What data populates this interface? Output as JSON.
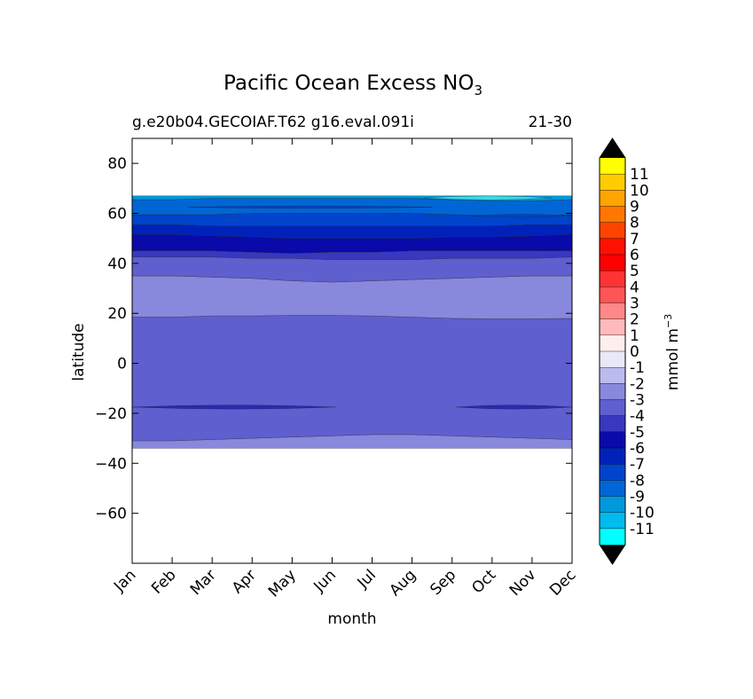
{
  "chart_data": {
    "type": "heatmap",
    "title_main": "Pacific Ocean Excess NO",
    "title_sub": "3",
    "subtitle_left": "g.e20b04.GECOIAF.T62 g16.eval.091i",
    "subtitle_right": "21-30",
    "xlabel": "month",
    "ylabel": "latitude",
    "x_categories": [
      "Jan",
      "Feb",
      "Mar",
      "Apr",
      "May",
      "Jun",
      "Jul",
      "Aug",
      "Sep",
      "Oct",
      "Nov",
      "Dec"
    ],
    "ylim": [
      -80,
      90
    ],
    "y_ticks": [
      {
        "value": 80,
        "label": "80"
      },
      {
        "value": 60,
        "label": "60"
      },
      {
        "value": 40,
        "label": "40"
      },
      {
        "value": 20,
        "label": "20"
      },
      {
        "value": 0,
        "label": "0"
      },
      {
        "value": -20,
        "label": "−20"
      },
      {
        "value": -40,
        "label": "−40"
      },
      {
        "value": -60,
        "label": "−60"
      }
    ],
    "contour_bands": [
      {
        "level": -3,
        "color": "#8888DD",
        "south": [
          -34,
          -34,
          -34,
          -34,
          -34,
          -34,
          -34,
          -34,
          -34,
          -34,
          -34,
          -34
        ],
        "north": [
          -31,
          -31,
          -30.5,
          -30,
          -29.5,
          -29,
          -28.5,
          -28.5,
          -29,
          -29.5,
          -30,
          -30.5
        ]
      },
      {
        "level": -4,
        "color": "#5F5FCF",
        "south": [
          -31,
          -31,
          -30.5,
          -30,
          -29.5,
          -29,
          -28.5,
          -28.5,
          -29,
          -29.5,
          -30,
          -30.5
        ],
        "north": [
          18.5,
          18.5,
          19,
          19,
          19.2,
          19.2,
          19,
          18.5,
          18,
          17.8,
          17.8,
          18
        ]
      },
      {
        "level": -3,
        "color": "#8888DD",
        "south": [
          18.5,
          18.5,
          19,
          19,
          19.2,
          19.2,
          19,
          18.5,
          18,
          17.8,
          17.8,
          18
        ],
        "north": [
          35,
          35,
          34.5,
          34,
          33,
          32.5,
          33,
          33.5,
          34,
          34.5,
          35,
          35
        ]
      },
      {
        "level": -4,
        "color": "#5F5FCF",
        "south": [
          35,
          35,
          34.5,
          34,
          33,
          32.5,
          33,
          33.5,
          34,
          34.5,
          35,
          35
        ],
        "north": [
          42.5,
          42.5,
          42.5,
          42,
          42,
          41.5,
          41.5,
          41.5,
          42,
          42,
          42,
          42.5
        ]
      },
      {
        "level": -5,
        "color": "#3838C0",
        "south": [
          42.5,
          42.5,
          42.5,
          42,
          42,
          41.5,
          41.5,
          41.5,
          42,
          42,
          42,
          42.5
        ],
        "north": [
          45,
          45,
          45,
          44.5,
          44,
          44.5,
          44.5,
          45,
          45,
          45,
          45,
          45
        ]
      },
      {
        "level": -6,
        "color": "#0A0AAA",
        "south": [
          45,
          45,
          45,
          44.5,
          44,
          44.5,
          44.5,
          45,
          45,
          45,
          45,
          45
        ],
        "north": [
          51.5,
          51.5,
          51,
          50.5,
          50,
          50,
          50,
          50,
          50.5,
          50.5,
          51,
          51.5
        ]
      },
      {
        "level": -7,
        "color": "#0022BB",
        "south": [
          51.5,
          51.5,
          51,
          50.5,
          50,
          50,
          50,
          50,
          50.5,
          50.5,
          51,
          51.5
        ],
        "north": [
          55.5,
          55.5,
          55,
          55,
          55,
          55,
          55,
          55,
          55,
          55,
          55.5,
          55.5
        ]
      },
      {
        "level": -8,
        "color": "#0044CC",
        "south": [
          55.5,
          55.5,
          55,
          55,
          55,
          55,
          55,
          55,
          55,
          55,
          55.5,
          55.5
        ],
        "north": [
          59.5,
          59.5,
          59.5,
          60,
          60,
          60,
          60,
          60,
          59.5,
          59,
          59,
          59.5
        ]
      },
      {
        "level": -9,
        "color": "#0066D5",
        "south": [
          59.5,
          59.5,
          59.5,
          60,
          60,
          60,
          60,
          60,
          59.5,
          59,
          59,
          59.5
        ],
        "north": [
          65.5,
          65.5,
          66,
          66,
          66,
          66,
          66,
          66,
          65.5,
          65,
          65,
          65.5
        ]
      },
      {
        "level": -10,
        "color": "#0099DD",
        "south": [
          65.5,
          65.5,
          66,
          66,
          66,
          66,
          66,
          66,
          65.5,
          65,
          65,
          65.5
        ],
        "north": [
          67,
          67,
          67,
          67,
          67,
          67,
          67,
          67,
          67,
          67,
          67,
          67
        ]
      }
    ],
    "contour_lenses": [
      {
        "level": -5,
        "color": "#2A2AB5",
        "x_start": 0,
        "x_end": 5.1,
        "center": -17.5,
        "half_width": 0.8
      },
      {
        "level": -5,
        "color": "#2A2AB5",
        "x_start": 8.1,
        "x_end": 11,
        "center": -17.5,
        "half_width": 0.8
      },
      {
        "level": -8,
        "color": "#0044CC",
        "x_start": 1.4,
        "x_end": 7.5,
        "center": 62.5,
        "half_width": 0.5
      },
      {
        "level": -8,
        "color": "#0044CC",
        "x_start": 8.5,
        "x_end": 11,
        "center": 59,
        "half_width": 0.6
      },
      {
        "level": -11,
        "color": "#33DDEE",
        "x_start": 7.3,
        "x_end": 10.5,
        "center": 66.2,
        "half_width": 0.8
      }
    ],
    "colorbar": {
      "label": "mmol m",
      "label_exponent": "−3",
      "levels": [
        {
          "label": "11",
          "color": "#FFFF00"
        },
        {
          "label": "10",
          "color": "#FFCC00"
        },
        {
          "label": "9",
          "color": "#FFA500"
        },
        {
          "label": "8",
          "color": "#FF7700"
        },
        {
          "label": "7",
          "color": "#FF4400"
        },
        {
          "label": "6",
          "color": "#FF1100"
        },
        {
          "label": "5",
          "color": "#FF0000"
        },
        {
          "label": "4",
          "color": "#FF3333"
        },
        {
          "label": "3",
          "color": "#FF5555"
        },
        {
          "label": "2",
          "color": "#FF8888"
        },
        {
          "label": "1",
          "color": "#FFBBBB"
        },
        {
          "label": "0",
          "color": "#FFEEEE"
        },
        {
          "label": "-1",
          "color": "#E8E8F8"
        },
        {
          "label": "-2",
          "color": "#BBBBEE"
        },
        {
          "label": "-3",
          "color": "#8888DD"
        },
        {
          "label": "-4",
          "color": "#5F5FCF"
        },
        {
          "label": "-5",
          "color": "#3838C0"
        },
        {
          "label": "-6",
          "color": "#0A0AAA"
        },
        {
          "label": "-7",
          "color": "#0022BB"
        },
        {
          "label": "-8",
          "color": "#0044CC"
        },
        {
          "label": "-9",
          "color": "#0066D5"
        },
        {
          "label": "-10",
          "color": "#0099DD"
        },
        {
          "label": "-11",
          "color": "#00BBEE"
        },
        {
          "label": "",
          "color": "#00FFFF"
        }
      ],
      "extend_color": "#000000"
    }
  }
}
